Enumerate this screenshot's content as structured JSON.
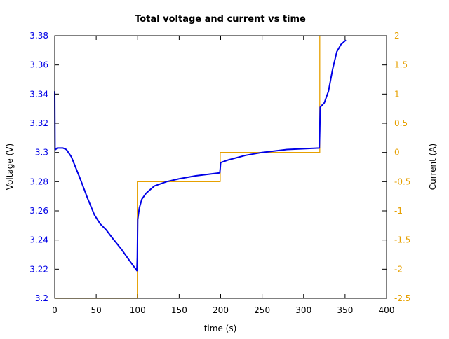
{
  "chart_data": {
    "type": "line",
    "title": "Total voltage and current vs time",
    "xlabel": "time (s)",
    "ylabel": "Voltage (V)",
    "y2label": "Current (A)",
    "xlim": [
      0,
      400
    ],
    "ylim": [
      3.2,
      3.38
    ],
    "y2lim": [
      -2.5,
      2
    ],
    "xticks": [
      "0",
      "50",
      "100",
      "150",
      "200",
      "250",
      "300",
      "350",
      "400"
    ],
    "yticks": [
      "3.2",
      "3.22",
      "3.24",
      "3.26",
      "3.28",
      "3.3",
      "3.32",
      "3.34",
      "3.36",
      "3.38"
    ],
    "y2ticks": [
      "-2.5",
      "-2",
      "-1.5",
      "-1",
      "-0.5",
      "0",
      "0.5",
      "1",
      "1.5",
      "2"
    ],
    "grid": false,
    "colors": {
      "voltage": "#0000e6",
      "current": "#e6a000",
      "axes": "#000000"
    },
    "series": [
      {
        "name": "Voltage",
        "axis": "left",
        "x": [
          0,
          0.3,
          1,
          3,
          6,
          10,
          14,
          20,
          30,
          40,
          48,
          55,
          62,
          70,
          80,
          90,
          99,
          99.5,
          100,
          102,
          105,
          110,
          120,
          135,
          150,
          170,
          199,
          199.5,
          200,
          210,
          230,
          250,
          280,
          319,
          319.5,
          320,
          325,
          330,
          335,
          340,
          345,
          351
        ],
        "values": [
          3.342,
          3.302,
          3.302,
          3.303,
          3.303,
          3.303,
          3.302,
          3.297,
          3.283,
          3.268,
          3.257,
          3.251,
          3.247,
          3.241,
          3.234,
          3.226,
          3.219,
          3.228,
          3.254,
          3.262,
          3.268,
          3.272,
          3.277,
          3.28,
          3.282,
          3.284,
          3.286,
          3.289,
          3.293,
          3.295,
          3.298,
          3.3,
          3.302,
          3.303,
          3.315,
          3.331,
          3.334,
          3.342,
          3.357,
          3.369,
          3.374,
          3.377
        ]
      },
      {
        "name": "Current",
        "axis": "right",
        "x": [
          0,
          99.5,
          99.5,
          199.5,
          199.5,
          319.5,
          319.5,
          320
        ],
        "values": [
          -2.5,
          -2.5,
          -0.5,
          -0.5,
          0,
          0,
          2,
          2
        ]
      }
    ]
  }
}
